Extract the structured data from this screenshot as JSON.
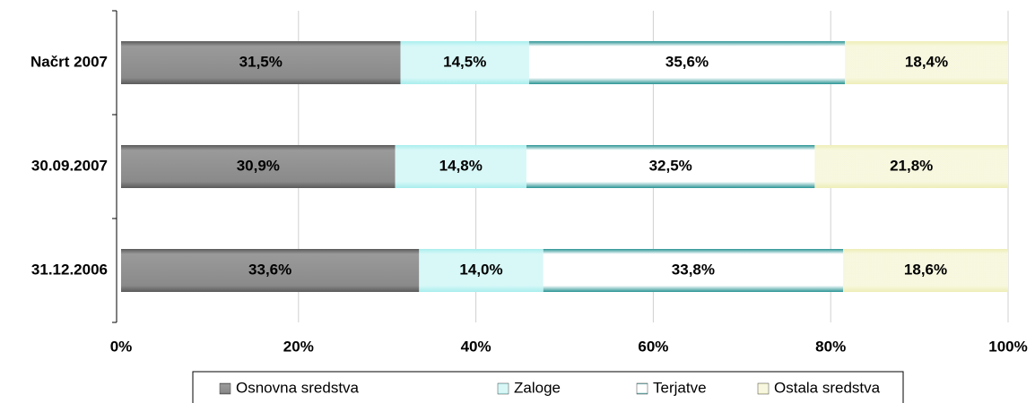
{
  "chart_data": {
    "type": "bar",
    "orientation": "horizontal",
    "stacked": true,
    "categories": [
      "Načrt 2007",
      "30.09.2007",
      "31.12.2006"
    ],
    "series": [
      {
        "name": "Osnovna sredstva",
        "color": "#808080",
        "values": [
          31.5,
          30.9,
          33.6
        ],
        "value_labels": [
          "31,5%",
          "30,9%",
          "33,6%"
        ]
      },
      {
        "name": "Zaloge",
        "color": "#a8eeee",
        "values": [
          14.5,
          14.8,
          14.0
        ],
        "value_labels": [
          "14,5%",
          "14,8%",
          "14,0%"
        ]
      },
      {
        "name": "Terjatve",
        "color": "#2a9494",
        "values": [
          35.6,
          32.5,
          33.8
        ],
        "value_labels": [
          "35,6%",
          "32,5%",
          "33,8%"
        ]
      },
      {
        "name": "Ostala sredstva",
        "color": "#eeeeb8",
        "values": [
          18.4,
          21.8,
          18.6
        ],
        "value_labels": [
          "18,4%",
          "21,8%",
          "18,6%"
        ]
      }
    ],
    "xlim": [
      0,
      100
    ],
    "xticks": [
      {
        "value": 0,
        "label": "0%"
      },
      {
        "value": 20,
        "label": "20%"
      },
      {
        "value": 40,
        "label": "40%"
      },
      {
        "value": 60,
        "label": "60%"
      },
      {
        "value": 80,
        "label": "80%"
      },
      {
        "value": 100,
        "label": "100%"
      }
    ],
    "grid": true,
    "legend": "bottom"
  }
}
